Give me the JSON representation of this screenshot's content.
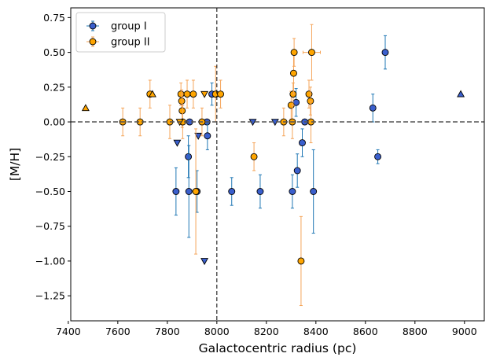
{
  "chart_data": {
    "type": "scatter",
    "title": "",
    "xlabel": "Galactocentric radius (pc)",
    "ylabel": "[M/H]",
    "xlim": [
      7410,
      9080
    ],
    "ylim": [
      -1.43,
      0.82
    ],
    "xticks": [
      7400,
      7600,
      7800,
      8000,
      8200,
      8400,
      8600,
      8800,
      9000
    ],
    "yticks": [
      -1.25,
      -1.0,
      -0.75,
      -0.5,
      -0.25,
      0.0,
      0.25,
      0.5,
      0.75
    ],
    "xtick_labels": [
      "7400",
      "7600",
      "7800",
      "8000",
      "8200",
      "8400",
      "8600",
      "8800",
      "9000"
    ],
    "ytick_labels": [
      "−1.25",
      "−1.00",
      "−0.75",
      "−0.50",
      "−0.25",
      "0.00",
      "0.25",
      "0.50",
      "0.75"
    ],
    "reference_lines": {
      "vertical_x": 8000,
      "horizontal_y": 0.0
    },
    "grid": false,
    "legend_position": "top-left",
    "series": [
      {
        "name": "group I",
        "color": "#3a5fcd",
        "ecolor": "#1f77b4",
        "points": [
          {
            "x": 7835,
            "y": -0.5,
            "yerr": 0.17,
            "marker": "o"
          },
          {
            "x": 7885,
            "y": -0.25,
            "yerr": 0.15,
            "marker": "o"
          },
          {
            "x": 7887,
            "y": -0.5,
            "yerr": 0.33,
            "marker": "o"
          },
          {
            "x": 7890,
            "y": 0.0,
            "yerr": 0.0,
            "marker": "o"
          },
          {
            "x": 7920,
            "y": -0.5,
            "yerr": 0.15,
            "marker": "o"
          },
          {
            "x": 7960,
            "y": 0.0,
            "yerr": 0.0,
            "marker": "o"
          },
          {
            "x": 7962,
            "y": -0.1,
            "yerr": 0.1,
            "marker": "o"
          },
          {
            "x": 7980,
            "y": 0.2,
            "yerr": 0.08,
            "marker": "o"
          },
          {
            "x": 8060,
            "y": -0.5,
            "yerr": 0.1,
            "marker": "o"
          },
          {
            "x": 8175,
            "y": -0.5,
            "yerr": 0.12,
            "marker": "o"
          },
          {
            "x": 8305,
            "y": -0.5,
            "yerr": 0.12,
            "marker": "o"
          },
          {
            "x": 8320,
            "y": 0.14,
            "yerr": 0.1,
            "marker": "o"
          },
          {
            "x": 8325,
            "y": -0.35,
            "yerr": 0.12,
            "marker": "o"
          },
          {
            "x": 8345,
            "y": -0.15,
            "yerr": 0.1,
            "marker": "o"
          },
          {
            "x": 8355,
            "y": 0.0,
            "yerr": 0.0,
            "marker": "o"
          },
          {
            "x": 8390,
            "y": -0.5,
            "yerr": 0.3,
            "marker": "o"
          },
          {
            "x": 8630,
            "y": 0.1,
            "yerr": 0.1,
            "marker": "o"
          },
          {
            "x": 8650,
            "y": -0.25,
            "yerr": 0.05,
            "marker": "o"
          },
          {
            "x": 8680,
            "y": 0.5,
            "yerr": 0.12,
            "marker": "o"
          },
          {
            "x": 7840,
            "y": -0.15,
            "yerr": 0.0,
            "marker": "v"
          },
          {
            "x": 7950,
            "y": -1.0,
            "yerr": 0.0,
            "marker": "v"
          },
          {
            "x": 7925,
            "y": -0.1,
            "yerr": 0.0,
            "marker": "v"
          },
          {
            "x": 8145,
            "y": 0.0,
            "yerr": 0.0,
            "marker": "v"
          },
          {
            "x": 8235,
            "y": 0.0,
            "yerr": 0.0,
            "marker": "v"
          },
          {
            "x": 8985,
            "y": 0.2,
            "yerr": 0.0,
            "marker": "^"
          }
        ]
      },
      {
        "name": "group II",
        "color": "#ffa500",
        "ecolor": "#f5a55a",
        "points": [
          {
            "x": 7620,
            "y": 0.0,
            "yerr": 0.1,
            "marker": "o"
          },
          {
            "x": 7690,
            "y": 0.0,
            "yerr": 0.1,
            "marker": "o"
          },
          {
            "x": 7810,
            "y": 0.0,
            "yerr": 0.12,
            "marker": "o"
          },
          {
            "x": 7730,
            "y": 0.2,
            "yerr": 0.1,
            "marker": "o"
          },
          {
            "x": 7855,
            "y": 0.2,
            "yerr": 0.08,
            "marker": "o"
          },
          {
            "x": 7858,
            "y": 0.15,
            "yerr": 0.08,
            "marker": "o"
          },
          {
            "x": 7860,
            "y": 0.08,
            "yerr": 0.12,
            "marker": "o"
          },
          {
            "x": 7862,
            "y": 0.0,
            "yerr": 0.12,
            "marker": "o"
          },
          {
            "x": 7880,
            "y": 0.2,
            "yerr": 0.1,
            "marker": "o"
          },
          {
            "x": 7905,
            "y": 0.2,
            "yerr": 0.1,
            "marker": "o"
          },
          {
            "x": 7915,
            "y": -0.5,
            "yerr": 0.45,
            "marker": "o"
          },
          {
            "x": 7940,
            "y": 0.0,
            "yerr": 0.1,
            "marker": "o"
          },
          {
            "x": 7995,
            "y": 0.2,
            "yerr": 0.2,
            "marker": "o"
          },
          {
            "x": 8015,
            "y": 0.2,
            "yerr": 0.1,
            "marker": "o"
          },
          {
            "x": 8150,
            "y": -0.25,
            "yerr": 0.1,
            "marker": "o"
          },
          {
            "x": 8270,
            "y": 0.0,
            "yerr": 0.1,
            "marker": "o"
          },
          {
            "x": 8300,
            "y": 0.12,
            "yerr": 0.1,
            "marker": "o"
          },
          {
            "x": 8305,
            "y": 0.0,
            "yerr": 0.12,
            "marker": "o"
          },
          {
            "x": 8308,
            "y": 0.2,
            "yerr": 0.08,
            "marker": "o"
          },
          {
            "x": 8310,
            "y": 0.35,
            "yerr": 0.15,
            "marker": "o"
          },
          {
            "x": 8312,
            "y": 0.5,
            "yerr": 0.1,
            "marker": "o"
          },
          {
            "x": 8340,
            "y": -1.0,
            "yerr": 0.32,
            "marker": "o"
          },
          {
            "x": 8372,
            "y": 0.2,
            "yerr": 0.1,
            "marker": "o"
          },
          {
            "x": 8378,
            "y": 0.15,
            "yerr": 0.1,
            "marker": "o"
          },
          {
            "x": 8380,
            "y": 0.0,
            "yerr": 0.15,
            "marker": "o"
          },
          {
            "x": 8383,
            "y": 0.5,
            "yerr": 0.2,
            "marker": "o",
            "xerr": 35
          },
          {
            "x": 7470,
            "y": 0.1,
            "yerr": 0.0,
            "marker": "^"
          },
          {
            "x": 7740,
            "y": 0.2,
            "yerr": 0.0,
            "marker": "^"
          },
          {
            "x": 7850,
            "y": 0.0,
            "yerr": 0.0,
            "marker": "v"
          },
          {
            "x": 7950,
            "y": 0.2,
            "yerr": 0.0,
            "marker": "v"
          }
        ]
      }
    ]
  }
}
